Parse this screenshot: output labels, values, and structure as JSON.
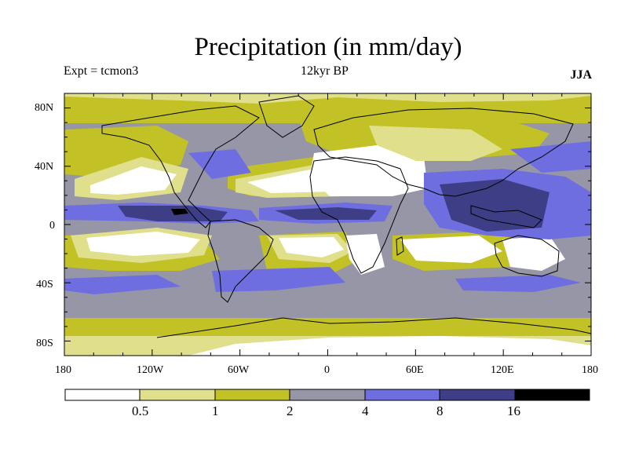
{
  "title": "Precipitation (in mm/day)",
  "expt_label": "Expt = tcmon3",
  "period_label": "12kyr BP",
  "season_label": "JJA",
  "lat_ticks": [
    "80N",
    "40N",
    "0",
    "40S",
    "80S"
  ],
  "lon_ticks": [
    "180",
    "120W",
    "60W",
    "0",
    "60E",
    "120E",
    "180"
  ],
  "colorbar": {
    "labels": [
      "0.5",
      "1",
      "2",
      "4",
      "8",
      "16"
    ],
    "colors": [
      "#ffffff",
      "#e0e08c",
      "#c2c227",
      "#9696a6",
      "#6e6ee0",
      "#3e3e86",
      "#000000"
    ]
  },
  "legend_placement": "bottom"
}
